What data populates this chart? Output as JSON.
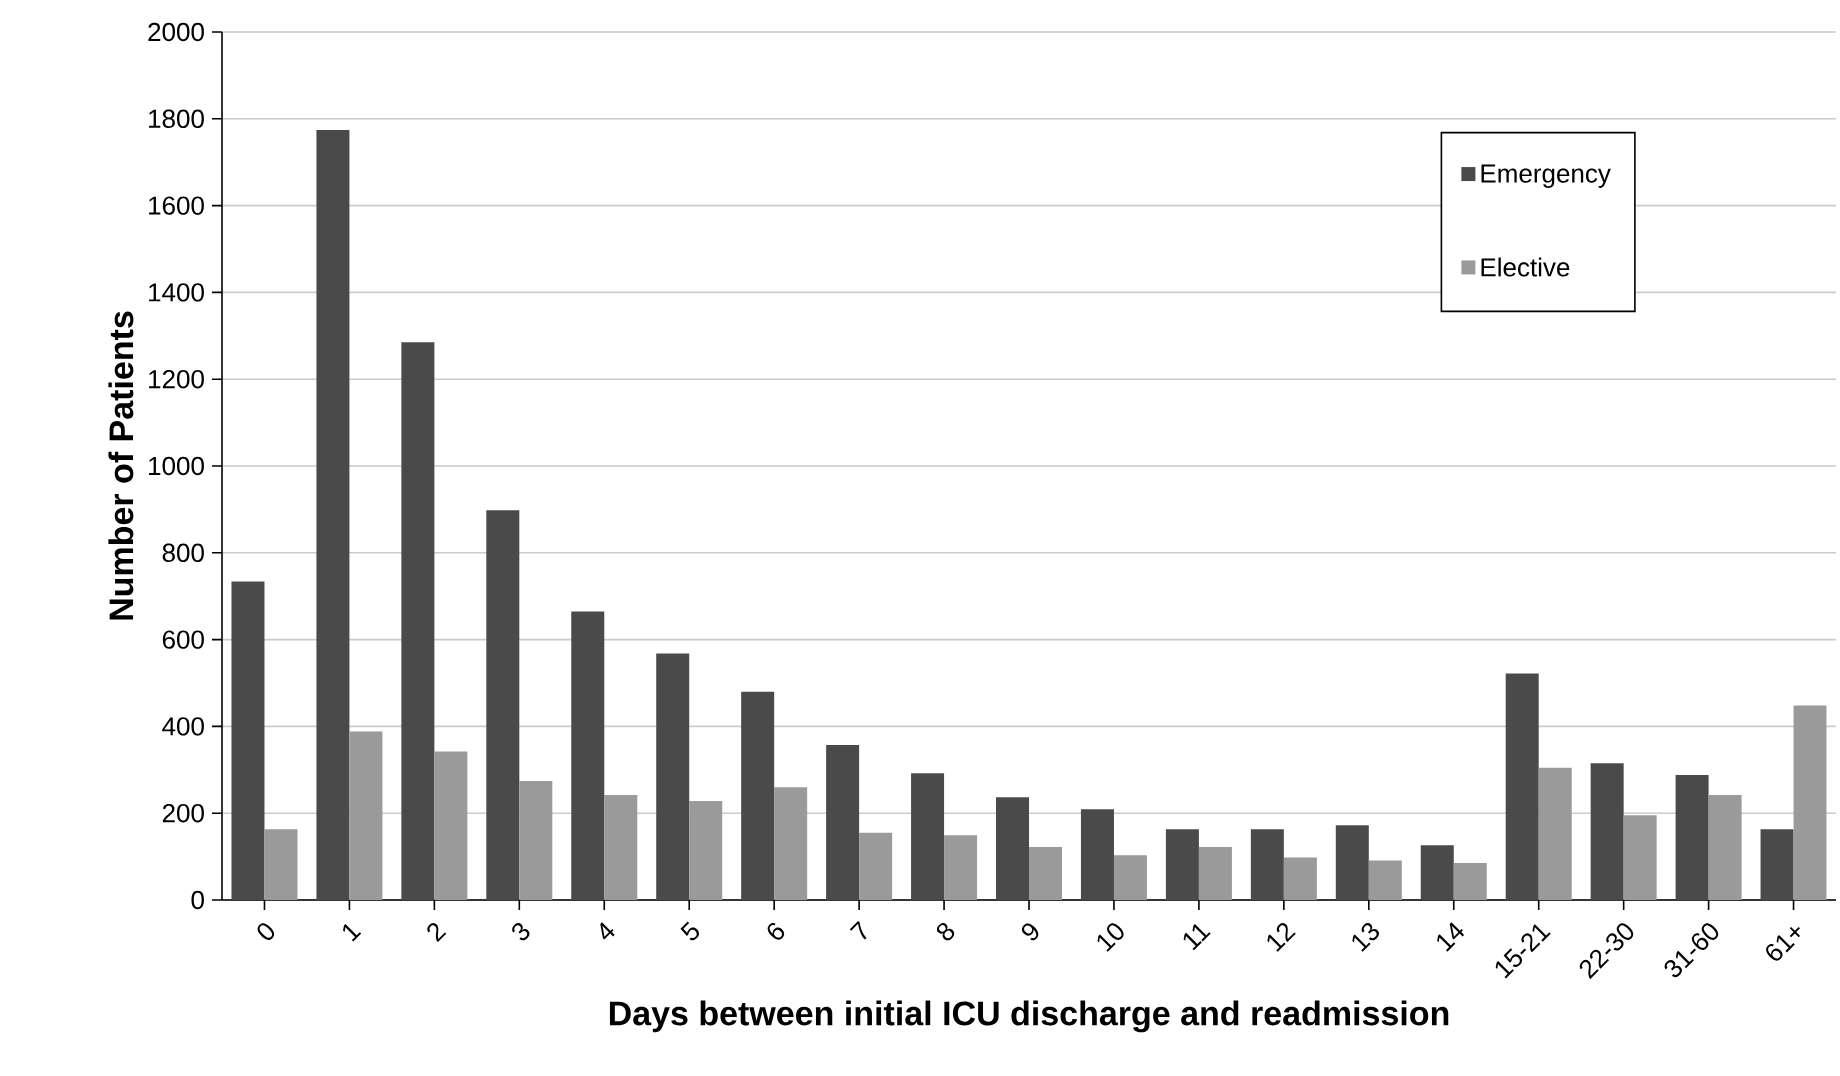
{
  "chart_data": {
    "type": "bar",
    "xlabel": "Days between initial ICU discharge and readmission",
    "ylabel": "Number of Patients",
    "categories": [
      "0",
      "1",
      "2",
      "3",
      "4",
      "5",
      "6",
      "7",
      "8",
      "9",
      "10",
      "11",
      "12",
      "13",
      "14",
      "15-21",
      "22-30",
      "31-60",
      "61+"
    ],
    "series": [
      {
        "name": "Emergency",
        "color": "#4a4a4a",
        "values": [
          734,
          1774,
          1285,
          898,
          665,
          568,
          480,
          357,
          292,
          237,
          209,
          163,
          163,
          172,
          126,
          522,
          315,
          288,
          163
        ]
      },
      {
        "name": "Elective",
        "color": "#9a9a9a",
        "values": [
          163,
          388,
          342,
          274,
          242,
          228,
          260,
          155,
          149,
          122,
          103,
          122,
          98,
          91,
          85,
          305,
          195,
          242,
          448
        ]
      }
    ],
    "ylim": [
      0,
      2000
    ],
    "yticks": [
      0,
      200,
      400,
      600,
      800,
      1000,
      1200,
      1400,
      1600,
      1800,
      2000
    ],
    "grid": "y",
    "legend": "top right"
  }
}
